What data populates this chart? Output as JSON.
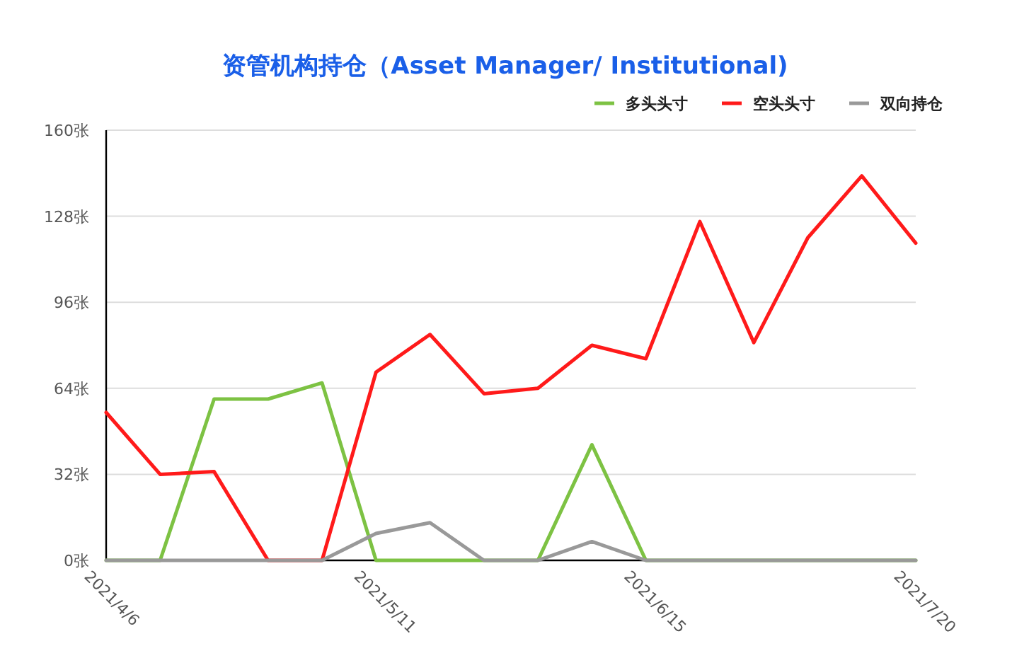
{
  "chart_data": {
    "type": "line",
    "title": "资管机构持仓（Asset Manager/ Institutional)",
    "categories": [
      "2021/4/6",
      null,
      null,
      null,
      null,
      "2021/5/11",
      null,
      null,
      null,
      null,
      "2021/6/15",
      null,
      null,
      null,
      null,
      "2021/7/20"
    ],
    "series": [
      {
        "name": "多头头寸",
        "color": "#7dc243",
        "values": [
          0,
          0,
          60,
          60,
          66,
          0,
          0,
          0,
          0,
          43,
          0,
          0,
          0,
          0,
          0,
          0
        ]
      },
      {
        "name": "空头头寸",
        "color": "#ff1a1a",
        "values": [
          55,
          32,
          33,
          0,
          0,
          70,
          84,
          62,
          64,
          80,
          75,
          126,
          81,
          120,
          143,
          118
        ]
      },
      {
        "name": "双向持仓",
        "color": "#999999",
        "values": [
          0,
          0,
          0,
          0,
          0,
          10,
          14,
          0,
          0,
          7,
          0,
          0,
          0,
          0,
          0,
          0
        ]
      }
    ],
    "ylim": [
      0,
      160
    ],
    "yticks": [
      {
        "value": 0,
        "label": "0张"
      },
      {
        "value": 32,
        "label": "32张"
      },
      {
        "value": 64,
        "label": "64张"
      },
      {
        "value": 96,
        "label": "96张"
      },
      {
        "value": 128,
        "label": "128张"
      },
      {
        "value": 160,
        "label": "160张"
      }
    ],
    "grid": "y",
    "legend": "top right",
    "marker": "none",
    "line_style": "solid"
  }
}
